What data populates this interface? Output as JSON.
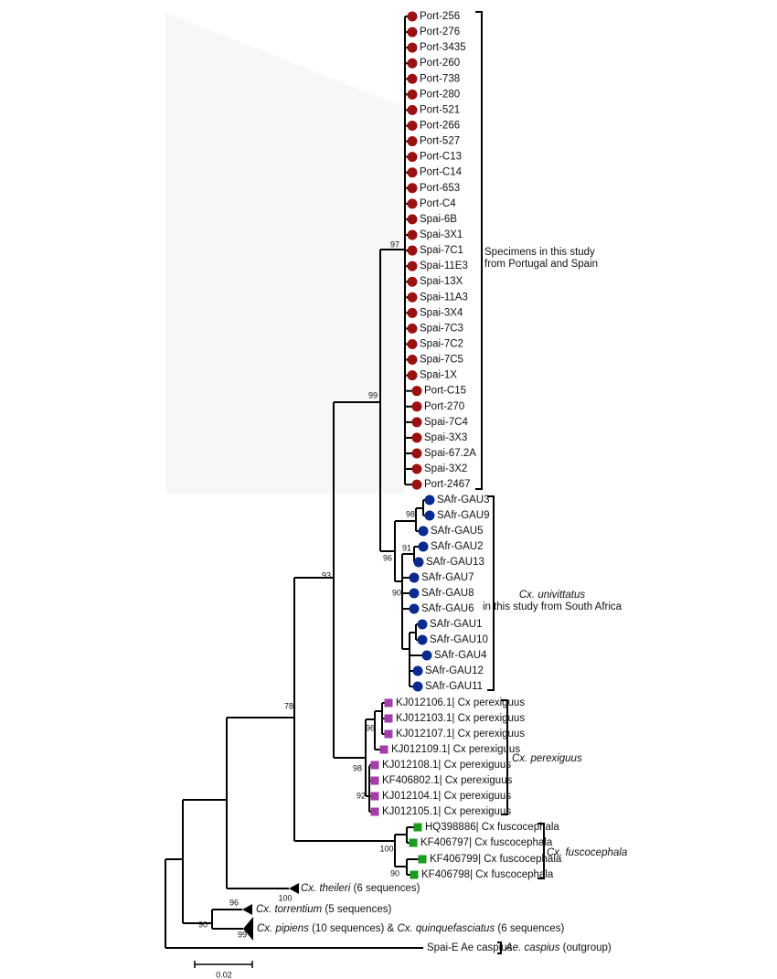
{
  "leaves": {
    "portugal_spain": [
      "Port-256",
      "Port-276",
      "Port-3435",
      "Port-260",
      "Port-738",
      "Port-280",
      "Port-521",
      "Port-266",
      "Port-527",
      "Port-C13",
      "Port-C14",
      "Port-653",
      "Port-C4",
      "Spai-6B",
      "Spai-3X1",
      "Spai-7C1",
      "Spai-11E3",
      "Spai-13X",
      "Spai-11A3",
      "Spai-3X4",
      "Spai-7C3",
      "Spai-7C2",
      "Spai-7C5",
      "Spai-1X",
      "Port-C15",
      "Port-270",
      "Spai-7C4",
      "Spai-3X3",
      "Spai-67.2A",
      "Spai-3X2",
      "Port-2467"
    ],
    "south_africa": [
      "SAfr-GAU3",
      "SAfr-GAU9",
      "SAfr-GAU5",
      "SAfr-GAU2",
      "SAfr-GAU13",
      "SAfr-GAU7",
      "SAfr-GAU8",
      "SAfr-GAU6",
      "SAfr-GAU1",
      "SAfr-GAU10",
      "SAfr-GAU4",
      "SAfr-GAU12",
      "SAfr-GAU11"
    ],
    "perexiguus": [
      "KJ012106.1| Cx perexiguus",
      "KJ012103.1| Cx perexiguus",
      "KJ012107.1| Cx perexiguus",
      "KJ012109.1| Cx perexiguus",
      "KJ012108.1| Cx perexiguus",
      "KF406802.1| Cx perexiguus",
      "KJ012104.1| Cx perexiguus",
      "KJ012105.1| Cx perexiguus"
    ],
    "fuscocephala": [
      "HQ398886| Cx fuscocephala",
      "KF406797| Cx fuscocephala",
      "KF406799| Cx fuscocephala",
      "KF406798| Cx fuscocephala"
    ]
  },
  "colors": {
    "portugal_spain": "#9b1111",
    "south_africa": "#0a2a8f",
    "perexiguus": "#a23ea8",
    "fuscocephala": "#1c9a1c"
  },
  "clades": [
    {
      "lines": [
        "Specimens in this study",
        "from Portugal and Spain"
      ]
    },
    {
      "name": "Cx. univittatus",
      "lines": [
        "in this study from South Africa"
      ]
    },
    {
      "name": "Cx. perexiguus"
    },
    {
      "name": "Cx. fuscocephala"
    }
  ],
  "collapsed": [
    {
      "name": "Cx. theileri",
      "note": "(6 sequences)"
    },
    {
      "name": "Cx. torrentium",
      "note": "(5 sequences)"
    },
    {
      "name": "Cx. pipiens",
      "note": "(10 sequences) &",
      "name2": "Cx. quinquefasciatus",
      "note2": "(6 sequences)"
    }
  ],
  "outgroup": {
    "label": "Spai-E Ae caspius",
    "name": "Ae. caspius",
    "note": "(outgroup)"
  },
  "bootstrap": [
    97,
    99,
    93,
    78,
    98,
    96,
    91,
    90,
    96,
    98,
    92,
    100,
    90,
    100,
    96,
    90,
    99
  ],
  "scale_bar": "0.02"
}
